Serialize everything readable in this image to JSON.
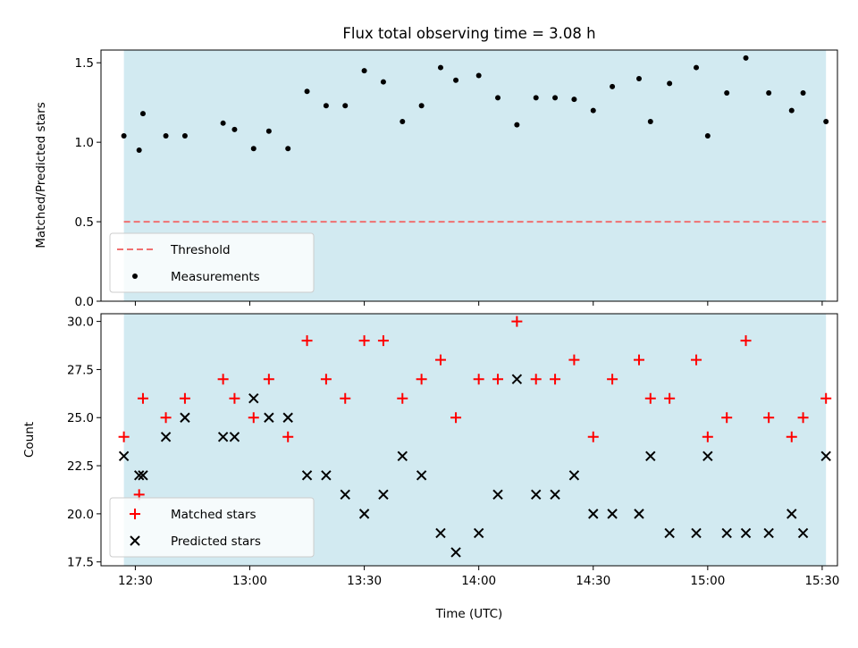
{
  "chart_data": [
    {
      "type": "scatter",
      "title": "Flux total observing time = 3.08 h",
      "ylabel": "Matched/Predicted stars",
      "xlabel": "",
      "xlim": [
        "12:21",
        "15:34"
      ],
      "ylim": [
        0,
        1.58
      ],
      "yticks": [
        0.0,
        0.5,
        1.0,
        1.5
      ],
      "ytick_labels": [
        "0.0",
        "0.5",
        "1.0",
        "1.5"
      ],
      "shaded_span": {
        "start": "12:27",
        "end": "15:31",
        "color": "#add8e6"
      },
      "threshold": {
        "value": 0.5,
        "color": "#f07070",
        "label": "Threshold"
      },
      "legend_placement": "lower-left",
      "legend": [
        "Threshold",
        "Measurements"
      ],
      "series": [
        {
          "name": "Measurements",
          "marker": "dot",
          "color": "#000000",
          "points": [
            [
              "12:27",
              1.04
            ],
            [
              "12:31",
              0.95
            ],
            [
              "12:32",
              1.18
            ],
            [
              "12:38",
              1.04
            ],
            [
              "12:43",
              1.04
            ],
            [
              "12:53",
              1.12
            ],
            [
              "12:56",
              1.08
            ],
            [
              "13:01",
              0.96
            ],
            [
              "13:05",
              1.07
            ],
            [
              "13:10",
              0.96
            ],
            [
              "13:15",
              1.32
            ],
            [
              "13:20",
              1.23
            ],
            [
              "13:25",
              1.23
            ],
            [
              "13:30",
              1.45
            ],
            [
              "13:35",
              1.38
            ],
            [
              "13:40",
              1.13
            ],
            [
              "13:45",
              1.23
            ],
            [
              "13:50",
              1.47
            ],
            [
              "13:54",
              1.39
            ],
            [
              "14:00",
              1.42
            ],
            [
              "14:05",
              1.28
            ],
            [
              "14:10",
              1.11
            ],
            [
              "14:15",
              1.28
            ],
            [
              "14:20",
              1.28
            ],
            [
              "14:25",
              1.27
            ],
            [
              "14:30",
              1.2
            ],
            [
              "14:35",
              1.35
            ],
            [
              "14:42",
              1.4
            ],
            [
              "14:45",
              1.13
            ],
            [
              "14:50",
              1.37
            ],
            [
              "14:57",
              1.47
            ],
            [
              "15:00",
              1.04
            ],
            [
              "15:05",
              1.31
            ],
            [
              "15:10",
              1.53
            ],
            [
              "15:16",
              1.31
            ],
            [
              "15:22",
              1.2
            ],
            [
              "15:25",
              1.31
            ],
            [
              "15:31",
              1.13
            ]
          ]
        }
      ]
    },
    {
      "type": "scatter",
      "title": "",
      "ylabel": "Count",
      "xlabel": "Time (UTC)",
      "xlim": [
        "12:21",
        "15:34"
      ],
      "ylim": [
        17.3,
        30.4
      ],
      "yticks": [
        17.5,
        20.0,
        22.5,
        25.0,
        27.5,
        30.0
      ],
      "ytick_labels": [
        "17.5",
        "20.0",
        "22.5",
        "25.0",
        "27.5",
        "30.0"
      ],
      "xticks": [
        "12:30",
        "13:00",
        "13:30",
        "14:00",
        "14:30",
        "15:00",
        "15:30"
      ],
      "shaded_span": {
        "start": "12:27",
        "end": "15:31",
        "color": "#add8e6"
      },
      "legend_placement": "lower-left",
      "legend": [
        "Matched stars",
        "Predicted stars"
      ],
      "series": [
        {
          "name": "Matched stars",
          "marker": "plus",
          "color": "#ff0000",
          "points": [
            [
              "12:27",
              24
            ],
            [
              "12:31",
              21
            ],
            [
              "12:32",
              26
            ],
            [
              "12:38",
              25
            ],
            [
              "12:43",
              26
            ],
            [
              "12:53",
              27
            ],
            [
              "12:56",
              26
            ],
            [
              "13:01",
              25
            ],
            [
              "13:05",
              27
            ],
            [
              "13:10",
              24
            ],
            [
              "13:15",
              29
            ],
            [
              "13:20",
              27
            ],
            [
              "13:25",
              26
            ],
            [
              "13:30",
              29
            ],
            [
              "13:35",
              29
            ],
            [
              "13:40",
              26
            ],
            [
              "13:45",
              27
            ],
            [
              "13:50",
              28
            ],
            [
              "13:54",
              25
            ],
            [
              "14:00",
              27
            ],
            [
              "14:05",
              27
            ],
            [
              "14:10",
              30
            ],
            [
              "14:15",
              27
            ],
            [
              "14:20",
              27
            ],
            [
              "14:25",
              28
            ],
            [
              "14:30",
              24
            ],
            [
              "14:35",
              27
            ],
            [
              "14:42",
              28
            ],
            [
              "14:45",
              26
            ],
            [
              "14:50",
              26
            ],
            [
              "14:57",
              28
            ],
            [
              "15:00",
              24
            ],
            [
              "15:05",
              25
            ],
            [
              "15:10",
              29
            ],
            [
              "15:16",
              25
            ],
            [
              "15:22",
              24
            ],
            [
              "15:25",
              25
            ],
            [
              "15:31",
              26
            ]
          ]
        },
        {
          "name": "Predicted stars",
          "marker": "x",
          "color": "#000000",
          "points": [
            [
              "12:27",
              23
            ],
            [
              "12:31",
              22
            ],
            [
              "12:32",
              22
            ],
            [
              "12:38",
              24
            ],
            [
              "12:43",
              25
            ],
            [
              "12:53",
              24
            ],
            [
              "12:56",
              24
            ],
            [
              "13:01",
              26
            ],
            [
              "13:05",
              25
            ],
            [
              "13:10",
              25
            ],
            [
              "13:15",
              22
            ],
            [
              "13:20",
              22
            ],
            [
              "13:25",
              21
            ],
            [
              "13:30",
              20
            ],
            [
              "13:35",
              21
            ],
            [
              "13:40",
              23
            ],
            [
              "13:45",
              22
            ],
            [
              "13:50",
              19
            ],
            [
              "13:54",
              18
            ],
            [
              "14:00",
              19
            ],
            [
              "14:05",
              21
            ],
            [
              "14:10",
              27
            ],
            [
              "14:15",
              21
            ],
            [
              "14:20",
              21
            ],
            [
              "14:25",
              22
            ],
            [
              "14:30",
              20
            ],
            [
              "14:35",
              20
            ],
            [
              "14:42",
              20
            ],
            [
              "14:45",
              23
            ],
            [
              "14:50",
              19
            ],
            [
              "14:57",
              19
            ],
            [
              "15:00",
              23
            ],
            [
              "15:05",
              19
            ],
            [
              "15:10",
              19
            ],
            [
              "15:16",
              19
            ],
            [
              "15:22",
              20
            ],
            [
              "15:25",
              19
            ],
            [
              "15:31",
              23
            ]
          ]
        }
      ]
    }
  ]
}
